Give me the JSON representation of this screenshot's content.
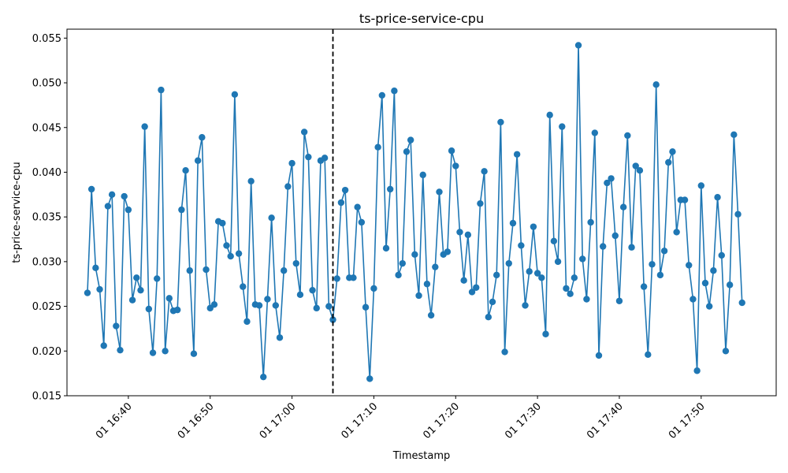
{
  "chart_data": {
    "type": "line",
    "title": "ts-price-service-cpu",
    "xlabel": "Timestamp",
    "ylabel": "ts-price-service-cpu",
    "ylim": [
      0.015,
      0.056
    ],
    "xlim": [
      "2023-01-01T16:32:30",
      "2023-01-01T17:59:10"
    ],
    "x_start": "2023-01-01T16:35:00",
    "x_step_seconds": 30,
    "yticks": [
      "0.015",
      "0.020",
      "0.025",
      "0.030",
      "0.035",
      "0.040",
      "0.045",
      "0.050",
      "0.055"
    ],
    "xticks": [
      {
        "t": "2023-01-01T16:40:00",
        "label": "01 16:40"
      },
      {
        "t": "2023-01-01T16:50:00",
        "label": "01 16:50"
      },
      {
        "t": "2023-01-01T17:00:00",
        "label": "01 17:00"
      },
      {
        "t": "2023-01-01T17:10:00",
        "label": "01 17:10"
      },
      {
        "t": "2023-01-01T17:20:00",
        "label": "01 17:20"
      },
      {
        "t": "2023-01-01T17:30:00",
        "label": "01 17:30"
      },
      {
        "t": "2023-01-01T17:40:00",
        "label": "01 17:40"
      },
      {
        "t": "2023-01-01T17:50:00",
        "label": "01 17:50"
      }
    ],
    "vline": "2023-01-01T17:05:00",
    "color": "#1f77b4",
    "grid": false,
    "series": [
      {
        "values": [
          0.0265,
          0.0381,
          0.0293,
          0.0269,
          0.0206,
          0.0362,
          0.0375,
          0.0228,
          0.0201,
          0.0373,
          0.0358,
          0.0257,
          0.0282,
          0.0268,
          0.0451,
          0.0247,
          0.0198,
          0.0281,
          0.0492,
          0.02,
          0.0259,
          0.0245,
          0.0246,
          0.0358,
          0.0402,
          0.029,
          0.0197,
          0.0413,
          0.0439,
          0.0291,
          0.0248,
          0.0252,
          0.0345,
          0.0343,
          0.0318,
          0.0306,
          0.0487,
          0.0309,
          0.0272,
          0.0233,
          0.039,
          0.0252,
          0.0251,
          0.0171,
          0.0258,
          0.0349,
          0.0251,
          0.0215,
          0.029,
          0.0384,
          0.041,
          0.0298,
          0.0263,
          0.0445,
          0.0417,
          0.0268,
          0.0248,
          0.0413,
          0.0416,
          0.025,
          0.0235,
          0.0281,
          0.0366,
          0.038,
          0.0282,
          0.0282,
          0.0361,
          0.0344,
          0.0249,
          0.0169,
          0.027,
          0.0428,
          0.0486,
          0.0315,
          0.0381,
          0.0491,
          0.0285,
          0.0298,
          0.0423,
          0.0436,
          0.0308,
          0.0262,
          0.0397,
          0.0275,
          0.024,
          0.0294,
          0.0378,
          0.0308,
          0.0311,
          0.0424,
          0.0407,
          0.0333,
          0.0279,
          0.033,
          0.0266,
          0.0271,
          0.0365,
          0.0401,
          0.0238,
          0.0255,
          0.0285,
          0.0456,
          0.0199,
          0.0298,
          0.0343,
          0.042,
          0.0318,
          0.0251,
          0.0289,
          0.0339,
          0.0287,
          0.0282,
          0.0219,
          0.0464,
          0.0323,
          0.03,
          0.0451,
          0.027,
          0.0264,
          0.0282,
          0.0542,
          0.0303,
          0.0258,
          0.0344,
          0.0444,
          0.0195,
          0.0317,
          0.0388,
          0.0393,
          0.0329,
          0.0256,
          0.0361,
          0.0441,
          0.0316,
          0.0407,
          0.0402,
          0.0272,
          0.0196,
          0.0297,
          0.0498,
          0.0285,
          0.0312,
          0.0411,
          0.0423,
          0.0333,
          0.0369,
          0.0369,
          0.0296,
          0.0258,
          0.0178,
          0.0385,
          0.0276,
          0.025,
          0.029,
          0.0372,
          0.0307,
          0.02,
          0.0274,
          0.0442,
          0.0353,
          0.0254
        ]
      }
    ]
  }
}
